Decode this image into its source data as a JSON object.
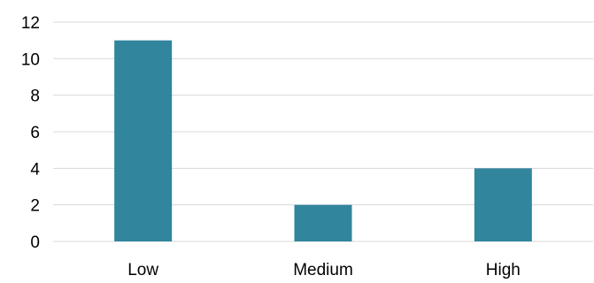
{
  "chart_data": {
    "type": "bar",
    "categories": [
      "Low",
      "Medium",
      "High"
    ],
    "values": [
      11,
      2,
      4
    ],
    "ylim": [
      0,
      12
    ],
    "yticks": [
      0,
      2,
      4,
      6,
      8,
      10,
      12
    ],
    "grid": true,
    "legend": "none",
    "bar_color": "#31859C",
    "title": "",
    "xlabel": "",
    "ylabel": ""
  }
}
